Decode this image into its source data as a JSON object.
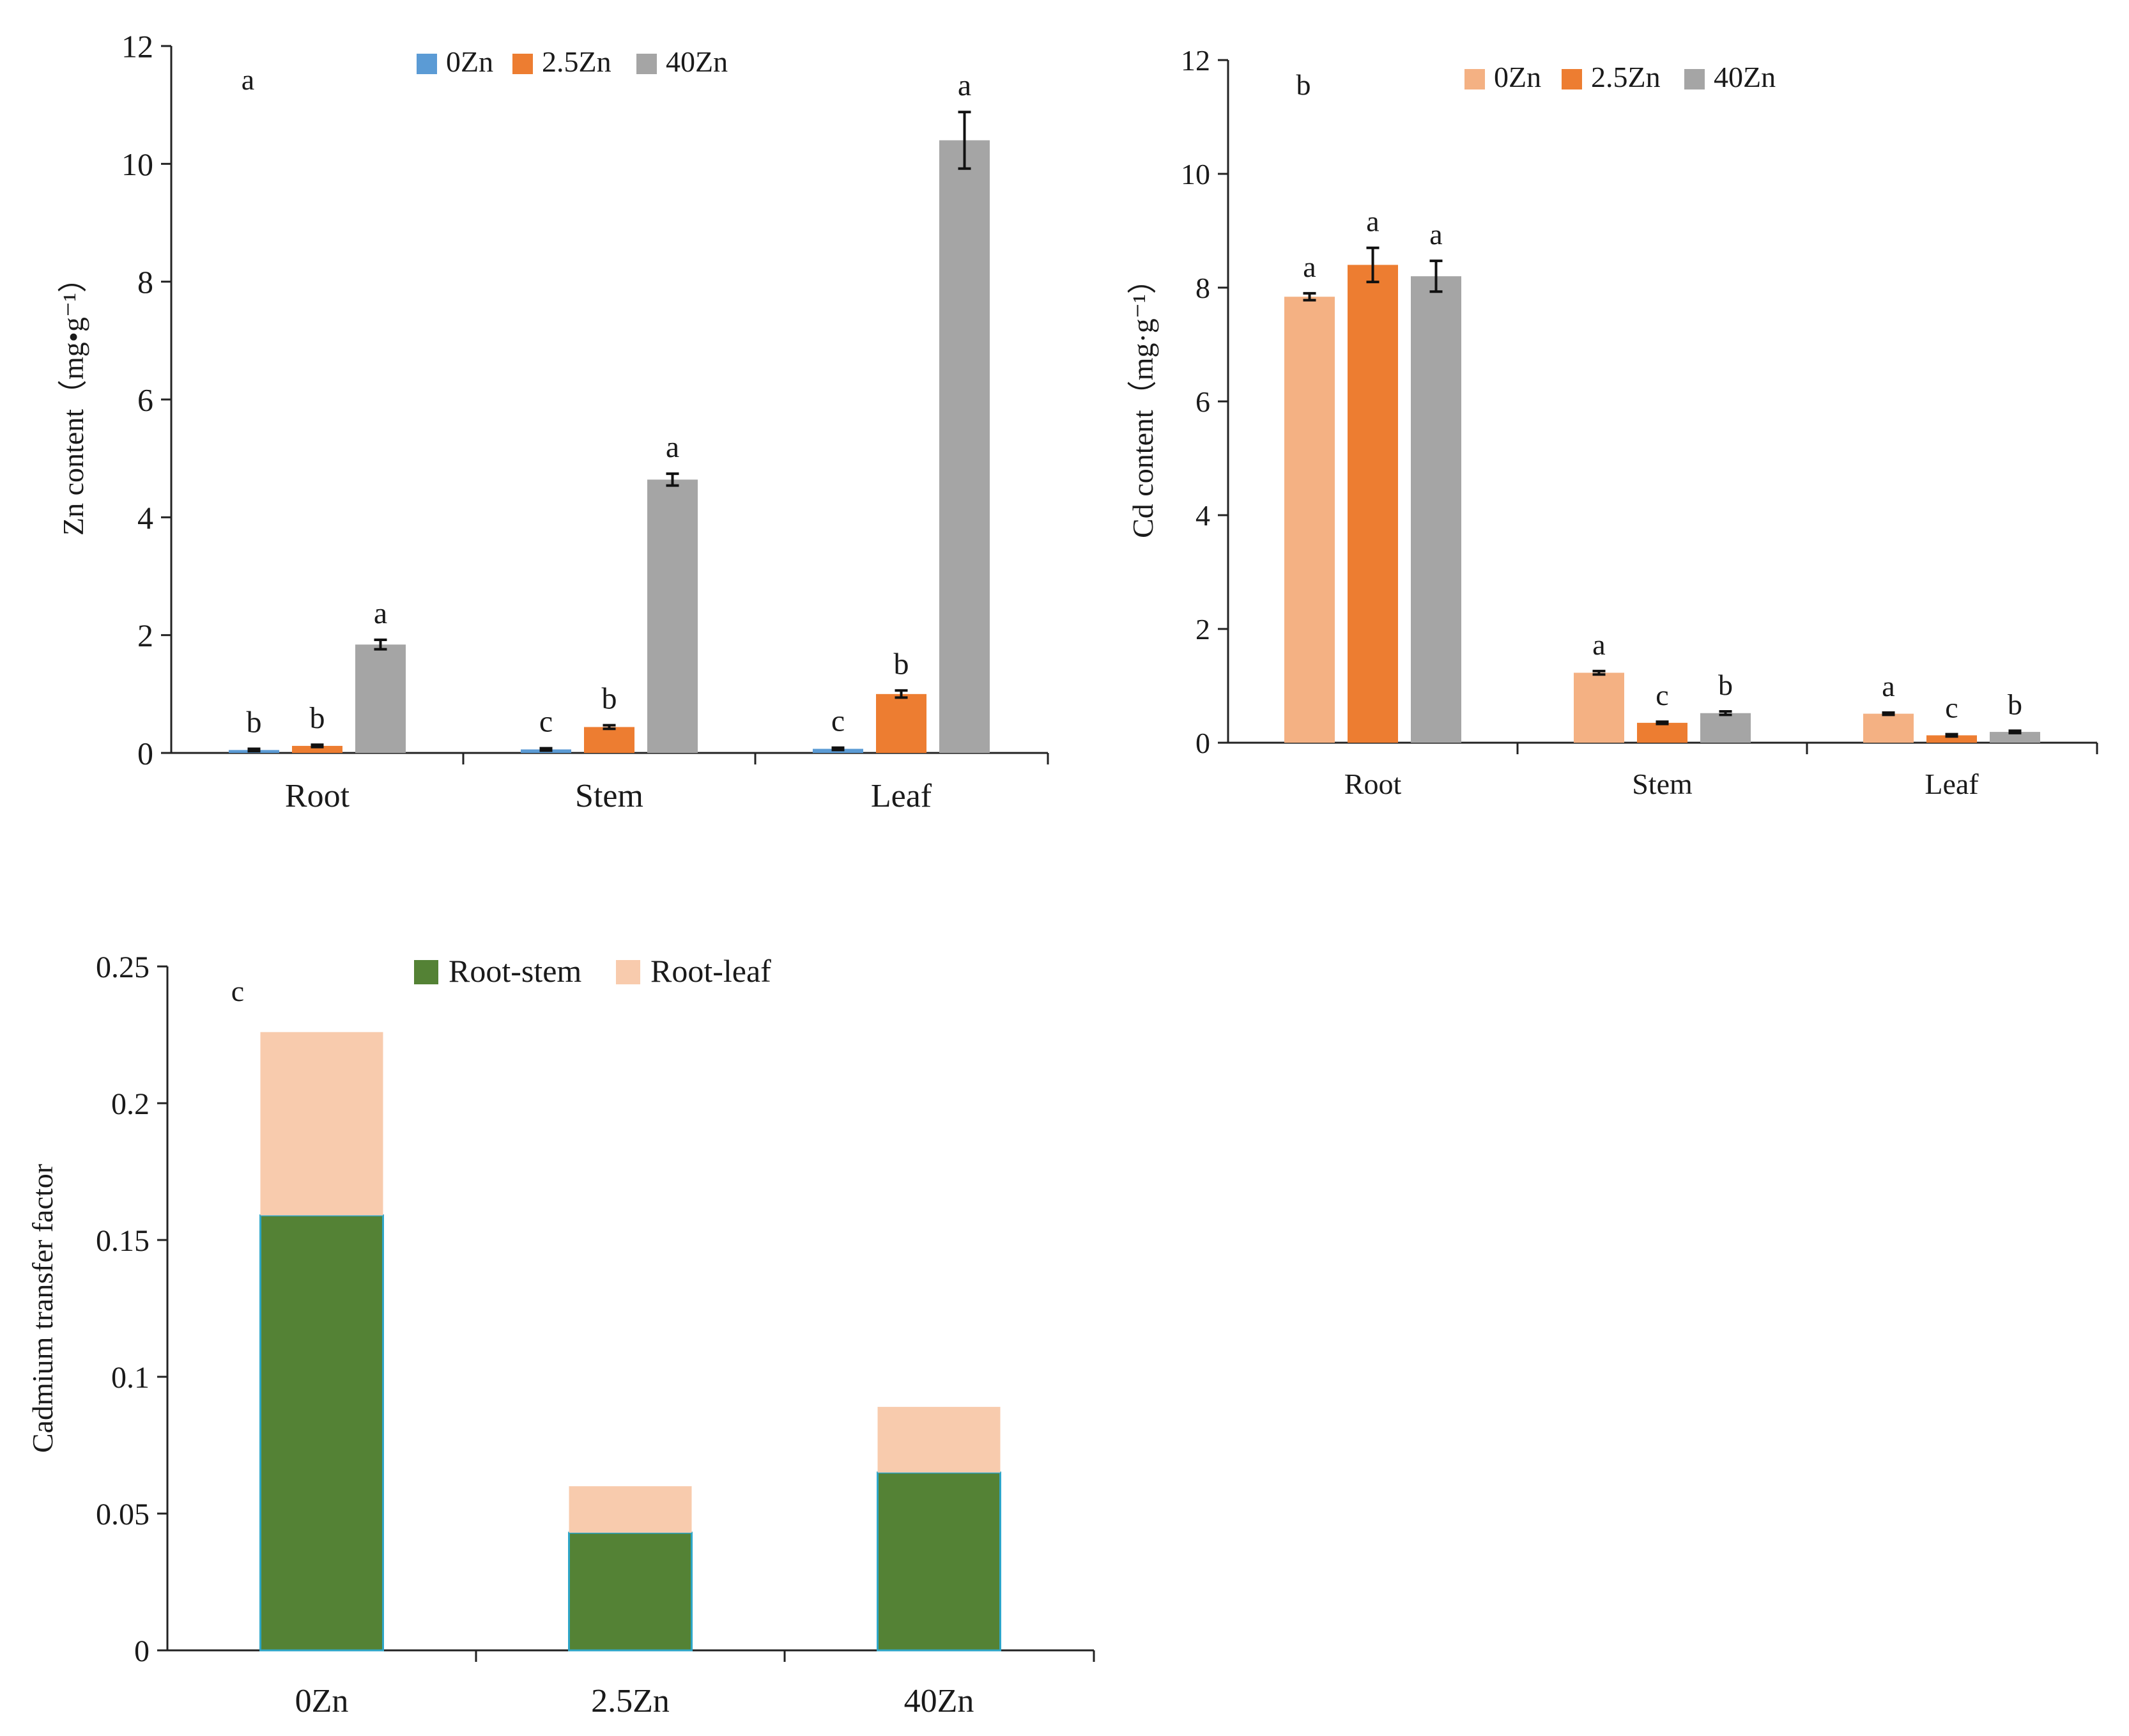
{
  "chart_data": [
    {
      "id": "a",
      "type": "bar",
      "panel_label": "a",
      "ylabel": "Zn content（mg•g⁻¹）",
      "ylim": [
        0,
        12
      ],
      "yticks": [
        0,
        2,
        4,
        6,
        8,
        10,
        12
      ],
      "categories": [
        "Root",
        "Stem",
        "Leaf"
      ],
      "legend_position": "top-center",
      "series": [
        {
          "name": "0Zn",
          "color": "#5B9BD5",
          "values": [
            0.05,
            0.06,
            0.07
          ],
          "errors": [
            0.02,
            0.02,
            0.02
          ],
          "letters": [
            "b",
            "c",
            "c"
          ]
        },
        {
          "name": "2.5Zn",
          "color": "#ED7D31",
          "values": [
            0.12,
            0.44,
            1.0
          ],
          "errors": [
            0.02,
            0.03,
            0.06
          ],
          "letters": [
            "b",
            "b",
            "b"
          ]
        },
        {
          "name": "40Zn",
          "color": "#A5A5A5",
          "values": [
            1.84,
            4.64,
            10.4
          ],
          "errors": [
            0.08,
            0.1,
            0.48
          ],
          "letters": [
            "a",
            "a",
            "a"
          ]
        }
      ]
    },
    {
      "id": "b",
      "type": "bar",
      "panel_label": "b",
      "ylabel": "Cd content（mg·g⁻¹）",
      "ylim": [
        0,
        12
      ],
      "yticks": [
        0,
        2,
        4,
        6,
        8,
        10,
        12
      ],
      "categories": [
        "Root",
        "Stem",
        "Leaf"
      ],
      "legend_position": "top-center",
      "series": [
        {
          "name": "0Zn",
          "color": "#F4B183",
          "values": [
            7.84,
            1.23,
            0.51
          ],
          "errors": [
            0.06,
            0.03,
            0.02
          ],
          "letters": [
            "a",
            "a",
            "a"
          ]
        },
        {
          "name": "2.5Zn",
          "color": "#ED7D31",
          "values": [
            8.4,
            0.35,
            0.13
          ],
          "errors": [
            0.3,
            0.02,
            0.02
          ],
          "letters": [
            "a",
            "c",
            "c"
          ]
        },
        {
          "name": "40Zn",
          "color": "#A5A5A5",
          "values": [
            8.2,
            0.52,
            0.19
          ],
          "errors": [
            0.27,
            0.03,
            0.02
          ],
          "letters": [
            "a",
            "b",
            "b"
          ]
        }
      ]
    },
    {
      "id": "c",
      "type": "stacked-bar",
      "panel_label": "c",
      "ylabel": "Cadmium transfer factor",
      "ylim": [
        0,
        0.25
      ],
      "yticks": [
        "0",
        "0.05",
        "0.1",
        "0.15",
        "0.2",
        "0.25"
      ],
      "categories": [
        "0Zn",
        "2.5Zn",
        "40Zn"
      ],
      "legend_position": "top-center",
      "series": [
        {
          "name": "Root-stem",
          "color": "#548235",
          "values": [
            0.159,
            0.043,
            0.065
          ]
        },
        {
          "name": "Root-leaf",
          "color": "#F8CBAD",
          "values": [
            0.067,
            0.017,
            0.024
          ]
        }
      ]
    }
  ]
}
